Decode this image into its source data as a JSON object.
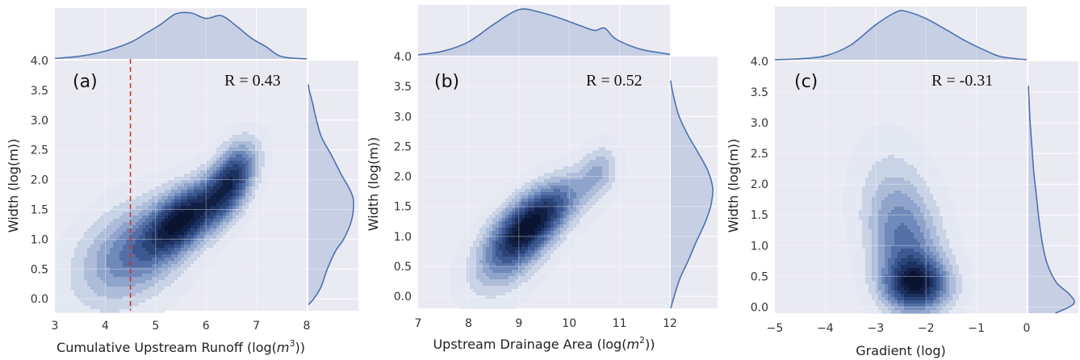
{
  "colors": {
    "panel_bg": "#eaeaf2",
    "grid": "#ffffff",
    "kde_line": "#4c72b0",
    "kde_fill": "#4c72b0",
    "threshold_line": "#d62728",
    "contour_levels": [
      "#e3e8f2",
      "#c9d3e6",
      "#adbcd9",
      "#8fa4cb",
      "#6f89ba",
      "#536fa6",
      "#3c5890",
      "#2b4478",
      "#1d3160",
      "#121f45",
      "#0a1430"
    ]
  },
  "chart_data": [
    {
      "type": "heatmap",
      "kind": "bivariate-kde-jointplot",
      "panel_label": "(a)",
      "annotation": "R = 0.43",
      "r": 0.43,
      "xlabel_pre": "Cumulative Upstream Runoff (log(",
      "xlabel_var": "m",
      "xlabel_exp": "3",
      "xlabel_post": "))",
      "ylabel": "Width (log(m))",
      "xlim": [
        3,
        8
      ],
      "ylim": [
        -0.2,
        4.0
      ],
      "xticks": [
        3,
        4,
        5,
        6,
        7,
        8
      ],
      "xtick_labels": [
        "3",
        "4",
        "5",
        "6",
        "7",
        "8"
      ],
      "yticks": [
        0.0,
        0.5,
        1.0,
        1.5,
        2.0,
        2.5,
        3.0,
        3.5,
        4.0
      ],
      "ytick_labels": [
        "0.0",
        "0.5",
        "1.0",
        "1.5",
        "2.0",
        "2.5",
        "3.0",
        "3.5",
        "4.0"
      ],
      "vline_x": 4.5,
      "kde_components": [
        {
          "mx": 4.5,
          "my": 0.75,
          "sx": 0.75,
          "sy": 0.6,
          "rho": 0.35,
          "w": 0.45
        },
        {
          "mx": 5.55,
          "my": 1.35,
          "sx": 0.5,
          "sy": 0.42,
          "rho": 0.55,
          "w": 0.8
        },
        {
          "mx": 6.45,
          "my": 1.85,
          "sx": 0.35,
          "sy": 0.42,
          "rho": 0.5,
          "w": 0.55
        },
        {
          "mx": 6.6,
          "my": 2.25,
          "sx": 0.3,
          "sy": 0.35,
          "rho": 0.3,
          "w": 0.25
        }
      ],
      "x_marginal": [
        [
          3.0,
          0.01
        ],
        [
          3.5,
          0.06
        ],
        [
          4.0,
          0.17
        ],
        [
          4.5,
          0.36
        ],
        [
          4.8,
          0.55
        ],
        [
          5.1,
          0.75
        ],
        [
          5.4,
          0.98
        ],
        [
          5.7,
          1.0
        ],
        [
          6.0,
          0.88
        ],
        [
          6.3,
          0.94
        ],
        [
          6.6,
          0.72
        ],
        [
          6.9,
          0.45
        ],
        [
          7.2,
          0.26
        ],
        [
          7.4,
          0.1
        ],
        [
          7.6,
          0.03
        ],
        [
          8.0,
          0.0
        ]
      ],
      "y_marginal": [
        [
          -0.1,
          0.0
        ],
        [
          0.0,
          0.12
        ],
        [
          0.2,
          0.28
        ],
        [
          0.5,
          0.42
        ],
        [
          0.8,
          0.6
        ],
        [
          1.0,
          0.78
        ],
        [
          1.3,
          0.95
        ],
        [
          1.6,
          1.0
        ],
        [
          1.8,
          0.94
        ],
        [
          2.1,
          0.72
        ],
        [
          2.4,
          0.52
        ],
        [
          2.7,
          0.3
        ],
        [
          3.0,
          0.18
        ],
        [
          3.3,
          0.09
        ],
        [
          3.5,
          0.02
        ],
        [
          3.6,
          0.0
        ]
      ]
    },
    {
      "type": "heatmap",
      "kind": "bivariate-kde-jointplot",
      "panel_label": "(b)",
      "annotation": "R = 0.52",
      "r": 0.52,
      "xlabel_pre": "Upstream Drainage Area (log(",
      "xlabel_var": "m",
      "xlabel_exp": "2",
      "xlabel_post": "))",
      "ylabel": "Width (log(m))",
      "xlim": [
        7,
        12
      ],
      "ylim": [
        -0.2,
        4.0
      ],
      "xticks": [
        7,
        8,
        9,
        10,
        11,
        12
      ],
      "xtick_labels": [
        "7",
        "8",
        "9",
        "10",
        "11",
        "12"
      ],
      "yticks": [
        0.0,
        0.5,
        1.0,
        1.5,
        2.0,
        2.5,
        3.0,
        3.5,
        4.0
      ],
      "ytick_labels": [
        "0.0",
        "0.5",
        "1.0",
        "1.5",
        "2.0",
        "2.5",
        "3.0",
        "3.5",
        "4.0"
      ],
      "kde_components": [
        {
          "mx": 9.1,
          "my": 1.1,
          "sx": 0.5,
          "sy": 0.45,
          "rho": 0.55,
          "w": 1.0
        },
        {
          "mx": 9.7,
          "my": 1.5,
          "sx": 0.55,
          "sy": 0.4,
          "rho": 0.6,
          "w": 0.55
        },
        {
          "mx": 10.6,
          "my": 2.1,
          "sx": 0.25,
          "sy": 0.3,
          "rho": 0.2,
          "w": 0.35
        },
        {
          "mx": 8.7,
          "my": 0.6,
          "sx": 0.55,
          "sy": 0.5,
          "rho": 0.4,
          "w": 0.3
        }
      ],
      "x_marginal": [
        [
          7.0,
          0.02
        ],
        [
          7.5,
          0.1
        ],
        [
          8.0,
          0.3
        ],
        [
          8.5,
          0.68
        ],
        [
          9.0,
          1.0
        ],
        [
          9.4,
          0.95
        ],
        [
          9.8,
          0.82
        ],
        [
          10.2,
          0.66
        ],
        [
          10.5,
          0.55
        ],
        [
          10.7,
          0.6
        ],
        [
          10.9,
          0.38
        ],
        [
          11.2,
          0.22
        ],
        [
          11.5,
          0.12
        ],
        [
          12.0,
          0.03
        ]
      ],
      "y_marginal": [
        [
          -0.2,
          0.0
        ],
        [
          0.0,
          0.08
        ],
        [
          0.3,
          0.22
        ],
        [
          0.6,
          0.42
        ],
        [
          0.9,
          0.6
        ],
        [
          1.2,
          0.8
        ],
        [
          1.5,
          0.95
        ],
        [
          1.8,
          1.0
        ],
        [
          2.1,
          0.88
        ],
        [
          2.4,
          0.65
        ],
        [
          2.7,
          0.4
        ],
        [
          3.0,
          0.2
        ],
        [
          3.3,
          0.08
        ],
        [
          3.5,
          0.02
        ],
        [
          3.6,
          0.0
        ]
      ]
    },
    {
      "type": "heatmap",
      "kind": "bivariate-kde-jointplot",
      "panel_label": "(c)",
      "annotation": "R = -0.31",
      "r": -0.31,
      "xlabel_pre": "Gradient (log)",
      "xlabel_var": "",
      "xlabel_exp": "",
      "xlabel_post": "",
      "ylabel": "Width (log(m))",
      "xlim": [
        -5,
        0
      ],
      "ylim": [
        -0.1,
        4.0
      ],
      "xticks": [
        -5,
        -4,
        -3,
        -2,
        -1,
        0
      ],
      "xtick_labels": [
        "−5",
        "−4",
        "−3",
        "−2",
        "−1",
        "0"
      ],
      "yticks": [
        0.0,
        0.5,
        1.0,
        1.5,
        2.0,
        2.5,
        3.0,
        3.5,
        4.0
      ],
      "ytick_labels": [
        "0.0",
        "0.5",
        "1.0",
        "1.5",
        "2.0",
        "2.5",
        "3.0",
        "3.5",
        "4.0"
      ],
      "kde_components": [
        {
          "mx": -2.2,
          "my": 0.35,
          "sx": 0.45,
          "sy": 0.3,
          "rho": 0.0,
          "w": 1.0
        },
        {
          "mx": -2.4,
          "my": 1.0,
          "sx": 0.5,
          "sy": 0.6,
          "rho": -0.2,
          "w": 0.55
        },
        {
          "mx": -2.6,
          "my": 1.8,
          "sx": 0.55,
          "sy": 0.7,
          "rho": -0.2,
          "w": 0.22
        }
      ],
      "x_marginal": [
        [
          -5.0,
          0.0
        ],
        [
          -4.5,
          0.02
        ],
        [
          -4.0,
          0.08
        ],
        [
          -3.5,
          0.3
        ],
        [
          -3.0,
          0.72
        ],
        [
          -2.6,
          0.98
        ],
        [
          -2.4,
          1.0
        ],
        [
          -2.0,
          0.85
        ],
        [
          -1.6,
          0.62
        ],
        [
          -1.2,
          0.38
        ],
        [
          -0.8,
          0.18
        ],
        [
          -0.5,
          0.06
        ],
        [
          0.0,
          0.0
        ]
      ],
      "y_marginal": [
        [
          -0.1,
          0.6
        ],
        [
          0.05,
          1.0
        ],
        [
          0.2,
          0.92
        ],
        [
          0.4,
          0.62
        ],
        [
          0.7,
          0.42
        ],
        [
          1.0,
          0.32
        ],
        [
          1.4,
          0.24
        ],
        [
          1.8,
          0.18
        ],
        [
          2.2,
          0.12
        ],
        [
          2.6,
          0.08
        ],
        [
          3.0,
          0.04
        ],
        [
          3.3,
          0.02
        ],
        [
          3.6,
          0.0
        ]
      ]
    }
  ]
}
